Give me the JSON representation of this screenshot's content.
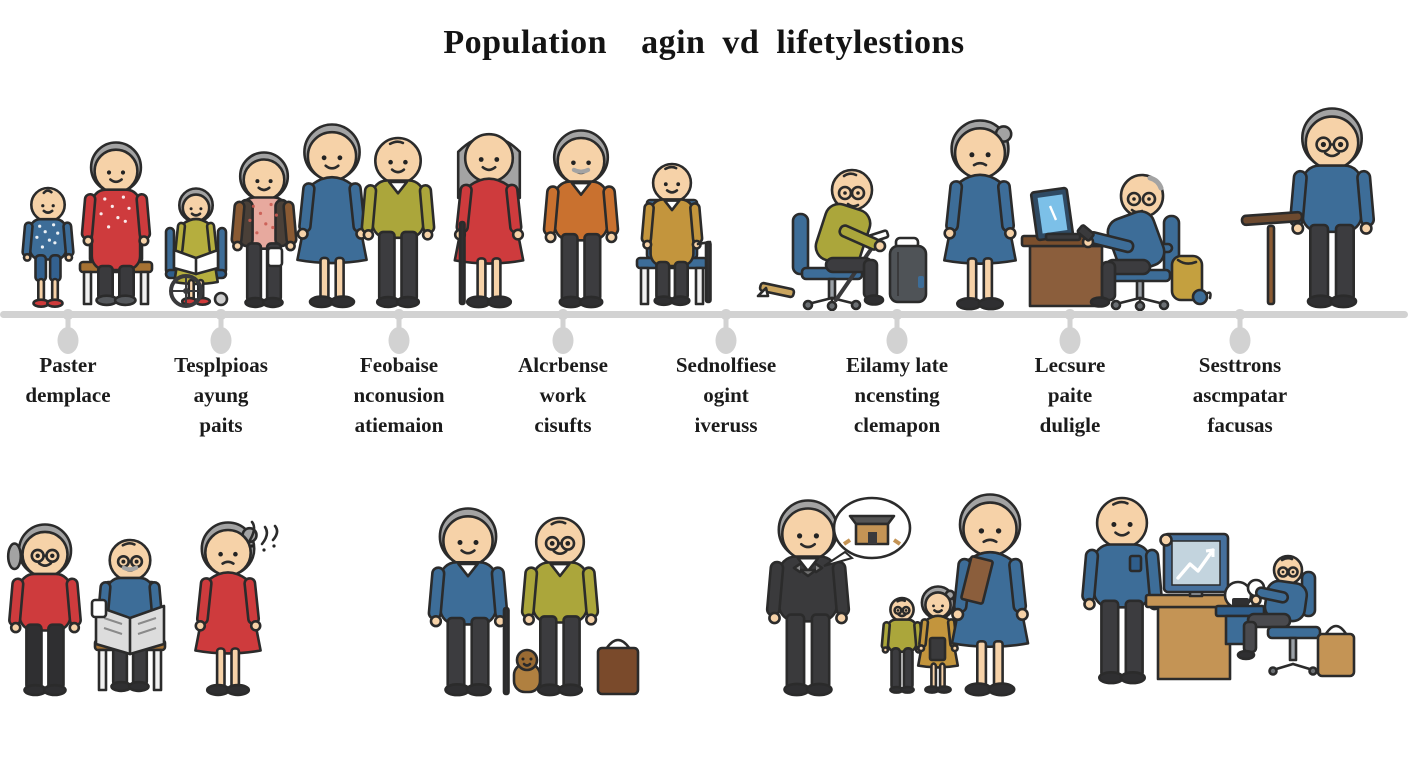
{
  "header": {
    "title": "Population  agin vd lifetylestions"
  },
  "timeline": {
    "labels": [
      {
        "text": "Paster\ndemplace"
      },
      {
        "text": "Tesplpioas\nayung\npaits"
      },
      {
        "text": "Feobaise\nnconusion\natiemaion"
      },
      {
        "text": "Alcrbense\nwork\ncisufts"
      },
      {
        "text": "Sednolfiese\nogint\niveruss"
      },
      {
        "text": "Eilamy late\nncensting\nclemapon"
      },
      {
        "text": "Lecsure\npaite\nduligle"
      },
      {
        "text": "Sesttrons\nascmpatar\nfacusas"
      }
    ]
  },
  "illustration": {
    "top_row_alt": "Row of cartoon people aging from toddler to elderly standing along a gray timeline",
    "scenes_alt": [
      "Elderly woman and frowning grandmother beside seated bald man reading a newspaper",
      "Two elderly men, one with a cane, with a small dog and a shopping bag",
      "Man in dark suit with a picture speech bubble talking to a woman with a folder and two small elders",
      "Man presenting a monitor with a rising chart to an elderly man seated at a desk with a lamp and bag"
    ]
  },
  "palette": {
    "outline": "#2b2b2b",
    "skin": "#f6d2a8",
    "hair_gray": "#a3a3a3",
    "blue": "#3d6d98",
    "blue_dark": "#2f5e8c",
    "olive": "#aba63b",
    "red": "#ce3b3d",
    "orange": "#c9712f",
    "mustard": "#c3953d",
    "pink": "#e7a99e",
    "brown": "#8b5e3c",
    "tan": "#c49455",
    "wood": "#a67233",
    "pants": "#3c3c3f",
    "suit": "#3a3a3c",
    "gray_bag": "#4f5357",
    "timeline": "#d2d2d2",
    "screen": "#7cc0e8",
    "monitor_screen": "#c3d4de"
  }
}
